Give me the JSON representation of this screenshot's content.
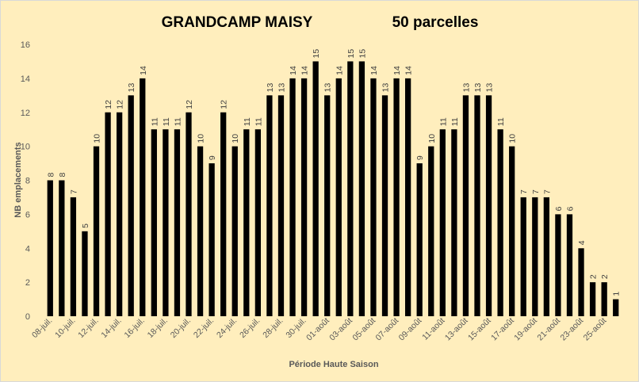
{
  "chart_data": {
    "type": "bar",
    "title": "GRANDCAMP MAISY",
    "subtitle": "50 parcelles",
    "xlabel": "Période Haute Saison",
    "ylabel": "NB emplacements",
    "ylim": [
      0,
      16
    ],
    "yticks": [
      0,
      2,
      4,
      6,
      8,
      10,
      12,
      14,
      16
    ],
    "grid": false,
    "legend": "none",
    "bar_color": "#000000",
    "background_color": "#ffeebd",
    "categories": [
      "08-juil.",
      "09-juil.",
      "10-juil.",
      "11-juil.",
      "12-juil.",
      "13-juil.",
      "14-juil.",
      "15-juil.",
      "16-juil.",
      "17-juil.",
      "18-juil.",
      "19-juil.",
      "20-juil.",
      "21-juil.",
      "22-juil.",
      "23-juil.",
      "24-juil.",
      "25-juil.",
      "26-juil.",
      "27-juil.",
      "28-juil.",
      "29-juil.",
      "30-juil.",
      "31-juil.",
      "01-août",
      "02-août",
      "03-août",
      "04-août",
      "05-août",
      "06-août",
      "07-août",
      "08-août",
      "09-août",
      "10-août",
      "11-août",
      "12-août",
      "13-août",
      "14-août",
      "15-août",
      "16-août",
      "17-août",
      "18-août",
      "19-août",
      "20-août",
      "21-août",
      "22-août",
      "23-août",
      "24-août",
      "25-août",
      "26-août"
    ],
    "visible_xtick_labels": [
      "08-juil.",
      "10-juil.",
      "12-juil.",
      "14-juil.",
      "16-juil.",
      "18-juil.",
      "20-juil.",
      "22-juil.",
      "24-juil.",
      "26-juil.",
      "28-juil.",
      "30-juil.",
      "01-août",
      "03-août",
      "05-août",
      "07-août",
      "09-août",
      "11-août",
      "13-août",
      "15-août",
      "17-août",
      "19-août",
      "21-août",
      "23-août",
      "25-août"
    ],
    "values": [
      8,
      8,
      7,
      5,
      10,
      12,
      12,
      13,
      14,
      11,
      11,
      11,
      12,
      10,
      9,
      12,
      10,
      11,
      11,
      13,
      13,
      14,
      14,
      15,
      13,
      14,
      15,
      15,
      14,
      13,
      14,
      14,
      9,
      10,
      11,
      11,
      13,
      13,
      13,
      11,
      10,
      7,
      7,
      7,
      6,
      6,
      4,
      2,
      2,
      1
    ]
  }
}
